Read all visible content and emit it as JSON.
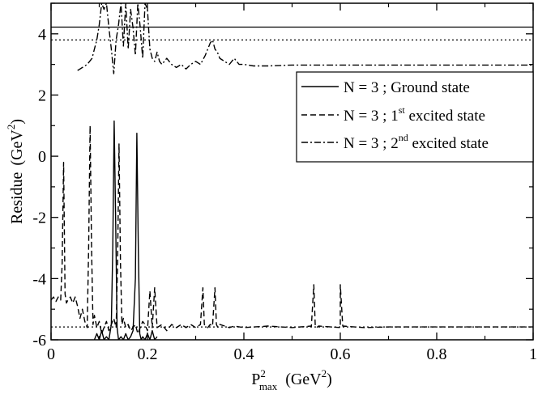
{
  "chart_data": {
    "type": "line",
    "xlabel": {
      "base": "P",
      "sup": "2",
      "sub": "max",
      "unit_prefix": "(GeV",
      "unit_sup": "2",
      "unit_suffix": ")"
    },
    "ylabel": {
      "text": "Residue",
      "unit_prefix": "(GeV",
      "unit_sup": "2",
      "unit_suffix": ")"
    },
    "xlim": [
      0,
      1
    ],
    "ylim": [
      -6,
      5
    ],
    "x_ticks": [
      0,
      0.2,
      0.4,
      0.6,
      0.8,
      1
    ],
    "x_tick_labels": [
      "0",
      "0.2",
      "0.4",
      "0.6",
      "0.8",
      "1"
    ],
    "y_ticks": [
      -6,
      -4,
      -2,
      0,
      2,
      4
    ],
    "y_tick_labels": [
      "-6",
      "-4",
      "-2",
      "0",
      "2",
      "4"
    ],
    "grid": false,
    "legend_position": "right",
    "legend": [
      {
        "prefix": "N = 3 ; Ground state",
        "sup": "",
        "suffix": "",
        "style": "solid"
      },
      {
        "prefix": "N = 3 ; 1",
        "sup": "st",
        "suffix": " excited state",
        "style": "dashed"
      },
      {
        "prefix": "N = 3 ; 2",
        "sup": "nd",
        "suffix": " excited state",
        "style": "dashdot"
      }
    ],
    "reference_lines": [
      {
        "y": 4.22,
        "style": "solid"
      },
      {
        "y": 3.8,
        "style": "dotted"
      },
      {
        "y": -5.58,
        "style": "dotted"
      }
    ],
    "series": [
      {
        "style": "solid",
        "x": [
          0.09,
          0.095,
          0.1,
          0.105,
          0.11,
          0.115,
          0.12,
          0.125,
          0.128,
          0.131,
          0.134,
          0.137,
          0.14,
          0.145,
          0.15,
          0.155,
          0.16,
          0.165,
          0.17,
          0.175,
          0.178,
          0.181,
          0.184,
          0.187,
          0.19,
          0.195,
          0.2,
          0.205,
          0.21,
          0.215,
          0.22
        ],
        "y": [
          -6,
          -5.8,
          -6,
          -5.7,
          -6,
          -5.9,
          -6,
          -5.5,
          -3,
          1.15,
          -2,
          -5.6,
          -6,
          -5.9,
          -6,
          -5.8,
          -6,
          -5.9,
          -5.7,
          -4,
          0.75,
          -3,
          -5.8,
          -6,
          -5.9,
          -6,
          -5.8,
          -6,
          -5.7,
          -6,
          -5.9
        ]
      },
      {
        "style": "dashed",
        "x": [
          0,
          0.005,
          0.01,
          0.015,
          0.02,
          0.023,
          0.026,
          0.029,
          0.032,
          0.035,
          0.04,
          0.045,
          0.05,
          0.055,
          0.06,
          0.065,
          0.07,
          0.075,
          0.078,
          0.081,
          0.084,
          0.087,
          0.09,
          0.095,
          0.1,
          0.105,
          0.11,
          0.115,
          0.12,
          0.125,
          0.13,
          0.135,
          0.138,
          0.141,
          0.144,
          0.147,
          0.15,
          0.155,
          0.16,
          0.165,
          0.17,
          0.175,
          0.18,
          0.185,
          0.19,
          0.195,
          0.2,
          0.205,
          0.21,
          0.215,
          0.22,
          0.23,
          0.24,
          0.25,
          0.26,
          0.27,
          0.28,
          0.29,
          0.3,
          0.31,
          0.315,
          0.318,
          0.321,
          0.325,
          0.33,
          0.335,
          0.34,
          0.343,
          0.346,
          0.35,
          0.36,
          0.37,
          0.38,
          0.4,
          0.45,
          0.5,
          0.54,
          0.545,
          0.548,
          0.551,
          0.555,
          0.6,
          0.6,
          0.605,
          0.65,
          0.7,
          0.8,
          0.9,
          1
        ],
        "y": [
          -4.7,
          -4.6,
          -4.75,
          -4.6,
          -4.7,
          -3.5,
          -0.2,
          -4.5,
          -4.8,
          -4.7,
          -4.6,
          -4.8,
          -4.6,
          -4.9,
          -5.3,
          -5,
          -5.4,
          -5.6,
          -3,
          1,
          -3,
          -5.5,
          -5.2,
          -5.6,
          -5.4,
          -5.8,
          -5.6,
          -5.4,
          -5.7,
          -5.5,
          -5.3,
          -5.6,
          -3.5,
          0.4,
          -3.5,
          -5.5,
          -5.3,
          -5.6,
          -5.5,
          -5.7,
          -5.6,
          -5.5,
          -5.8,
          -5.6,
          -5.4,
          -5.5,
          -5.7,
          -4.4,
          -5.6,
          -4.3,
          -5.6,
          -5.5,
          -5.7,
          -5.5,
          -5.6,
          -5.5,
          -5.6,
          -5.5,
          -5.6,
          -5.5,
          -4.3,
          -5.5,
          -5.55,
          -5.6,
          -5.5,
          -5.55,
          -4.3,
          -5.5,
          -5.6,
          -5.5,
          -5.55,
          -5.6,
          -5.55,
          -5.6,
          -5.55,
          -5.6,
          -5.55,
          -4.2,
          -5.55,
          -5.6,
          -5.55,
          -5.6,
          -4.2,
          -5.55,
          -5.6,
          -5.58,
          -5.58,
          -5.58,
          -5.58
        ]
      },
      {
        "style": "dashdot",
        "x": [
          0.055,
          0.065,
          0.075,
          0.085,
          0.09,
          0.095,
          0.1,
          0.105,
          0.11,
          0.115,
          0.12,
          0.125,
          0.13,
          0.135,
          0.14,
          0.145,
          0.15,
          0.155,
          0.16,
          0.165,
          0.17,
          0.175,
          0.18,
          0.185,
          0.19,
          0.195,
          0.2,
          0.205,
          0.21,
          0.215,
          0.22,
          0.225,
          0.23,
          0.24,
          0.25,
          0.26,
          0.27,
          0.28,
          0.29,
          0.3,
          0.31,
          0.32,
          0.33,
          0.335,
          0.34,
          0.345,
          0.35,
          0.36,
          0.37,
          0.38,
          0.39,
          0.4,
          0.42,
          0.45,
          0.5,
          0.55,
          0.6,
          0.7,
          0.8,
          0.9,
          1
        ],
        "y": [
          2.8,
          2.9,
          3,
          3.2,
          3.5,
          3.8,
          4.3,
          5,
          4.8,
          5,
          4.2,
          3.5,
          2.7,
          3.8,
          4.3,
          5,
          3.6,
          5,
          3.5,
          4.8,
          4.2,
          3.3,
          5,
          4.2,
          3.2,
          5,
          4.8,
          3.5,
          3.2,
          3.1,
          3.4,
          3.1,
          3,
          3.2,
          3,
          2.9,
          3,
          2.85,
          3,
          3.1,
          3,
          3.3,
          3.7,
          3.8,
          3.5,
          3.4,
          3.2,
          3.1,
          3,
          3.2,
          3,
          3,
          2.95,
          2.95,
          2.98,
          2.98,
          2.98,
          2.98,
          2.98,
          2.98,
          2.98
        ]
      }
    ]
  }
}
